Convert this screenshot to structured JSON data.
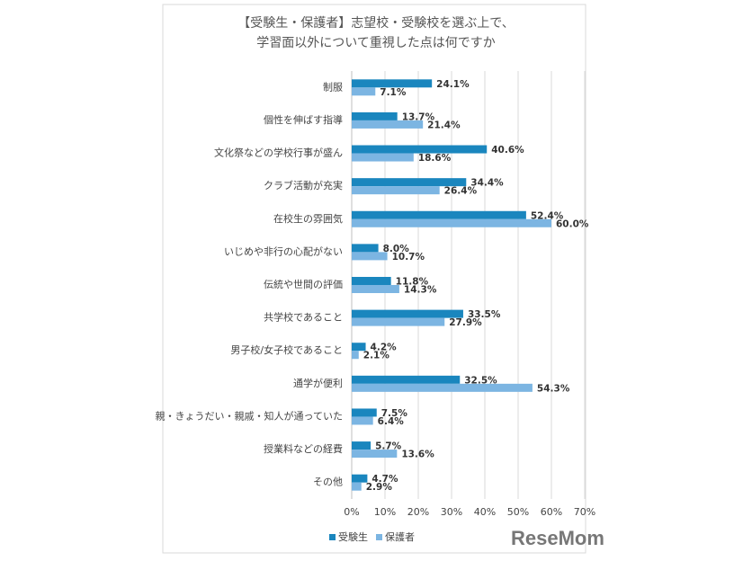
{
  "chart_data": {
    "type": "hbar",
    "title": [
      "【受験生・保護者】志望校・受験校を選ぶ上で、",
      "学習面以外について重視した点は何ですか"
    ],
    "categories": [
      "制服",
      "個性を伸ばす指導",
      "文化祭などの学校行事が盛ん",
      "クラブ活動が充実",
      "在校生の雰囲気",
      "いじめや非行の心配がない",
      "伝統や世間の評価",
      "共学校であること",
      "男子校/女子校であること",
      "通学が便利",
      "親・きょうだい・親戚・知人が通っていた",
      "授業料などの経費",
      "その他"
    ],
    "series": [
      {
        "name": "受験生",
        "color": "#1a86be",
        "values": [
          24.1,
          13.7,
          40.6,
          34.4,
          52.4,
          8.0,
          11.8,
          33.5,
          4.2,
          32.5,
          7.5,
          5.7,
          4.7
        ],
        "value_labels": [
          "24.1%",
          "13.7%",
          "40.6%",
          "34.4%",
          "52.4%",
          "8.0%",
          "11.8%",
          "33.5%",
          "4.2%",
          "32.5%",
          "7.5%",
          "5.7%",
          "4.7%"
        ]
      },
      {
        "name": "保護者",
        "color": "#7cb5e2",
        "values": [
          7.1,
          21.4,
          18.6,
          26.4,
          60.0,
          10.7,
          14.3,
          27.9,
          2.1,
          54.3,
          6.4,
          13.6,
          2.9
        ],
        "value_labels": [
          "7.1%",
          "21.4%",
          "18.6%",
          "26.4%",
          "60.0%",
          "10.7%",
          "14.3%",
          "27.9%",
          "2.1%",
          "54.3%",
          "6.4%",
          "13.6%",
          "2.9%"
        ]
      }
    ],
    "xlim": [
      0,
      70
    ],
    "xticks": [
      {
        "value": 0,
        "label": "0%"
      },
      {
        "value": 10,
        "label": "10%"
      },
      {
        "value": 20,
        "label": "20%"
      },
      {
        "value": 30,
        "label": "30%"
      },
      {
        "value": 40,
        "label": "40%"
      },
      {
        "value": 50,
        "label": "50%"
      },
      {
        "value": 60,
        "label": "60%"
      },
      {
        "value": 70,
        "label": "70%"
      }
    ],
    "grid": true,
    "logo": "ReseMom"
  }
}
